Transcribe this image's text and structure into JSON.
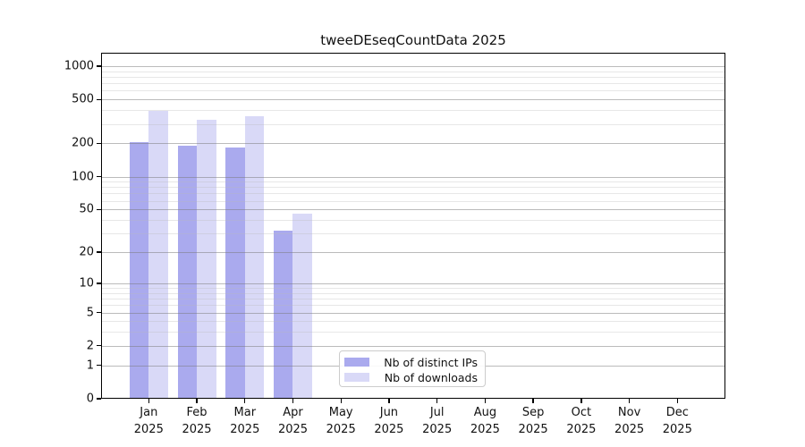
{
  "title": "tweeDEseqCountData 2025",
  "chart_data": {
    "type": "bar",
    "title": "tweeDEseqCountData 2025",
    "scale": "log1p",
    "categories": [
      "Jan",
      "Feb",
      "Mar",
      "Apr",
      "May",
      "Jun",
      "Jul",
      "Aug",
      "Sep",
      "Oct",
      "Nov",
      "Dec"
    ],
    "category_year": "2025",
    "series": [
      {
        "name": "Nb of distinct IPs",
        "color": "#aaaaee",
        "values": [
          205,
          190,
          185,
          32,
          0,
          0,
          0,
          0,
          0,
          0,
          0,
          0
        ]
      },
      {
        "name": "Nb of downloads",
        "color": "#d9d9f7",
        "values": [
          395,
          325,
          350,
          46,
          0,
          0,
          0,
          0,
          0,
          0,
          0,
          0
        ]
      }
    ],
    "y_ticks": [
      0,
      1,
      2,
      5,
      10,
      20,
      50,
      100,
      200,
      500,
      1000
    ],
    "y_minor_ticks": [
      3,
      4,
      6,
      7,
      8,
      9,
      30,
      40,
      60,
      70,
      80,
      90,
      300,
      400,
      600,
      700,
      800,
      900
    ],
    "ylim": [
      0,
      1320
    ],
    "xlabel": "",
    "ylabel": "",
    "grid": "horizontal",
    "legend_position": "lower-center"
  }
}
